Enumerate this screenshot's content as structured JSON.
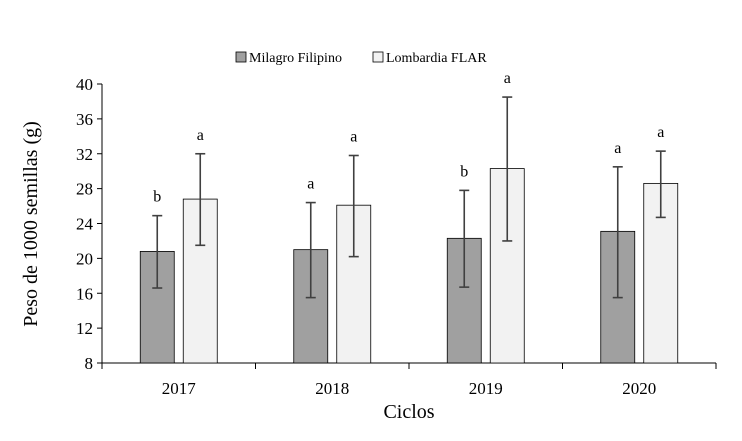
{
  "chart_data": {
    "type": "bar",
    "xlabel": "Ciclos",
    "ylabel": "Peso de 1000 semillas (g)",
    "categories": [
      "2017",
      "2018",
      "2019",
      "2020"
    ],
    "ylim": [
      8,
      40
    ],
    "yticks": [
      8,
      12,
      16,
      20,
      24,
      28,
      32,
      36,
      40
    ],
    "grid": false,
    "legend_position": "top-center",
    "series": [
      {
        "name": "Milagro Filipino",
        "color": "#a0a0a0",
        "values": [
          20.8,
          21.0,
          22.3,
          23.1
        ],
        "error_low": [
          16.6,
          15.5,
          16.7,
          15.5
        ],
        "error_high": [
          24.9,
          26.4,
          27.8,
          30.5
        ],
        "significance": [
          "b",
          "a",
          "b",
          "a"
        ]
      },
      {
        "name": "Lombardia FLAR",
        "color": "#f2f2f2",
        "values": [
          26.8,
          26.1,
          30.3,
          28.6
        ],
        "error_low": [
          21.5,
          20.2,
          22.0,
          24.7
        ],
        "error_high": [
          32.0,
          31.8,
          38.5,
          32.3
        ],
        "significance": [
          "a",
          "a",
          "a",
          "a"
        ]
      }
    ]
  }
}
